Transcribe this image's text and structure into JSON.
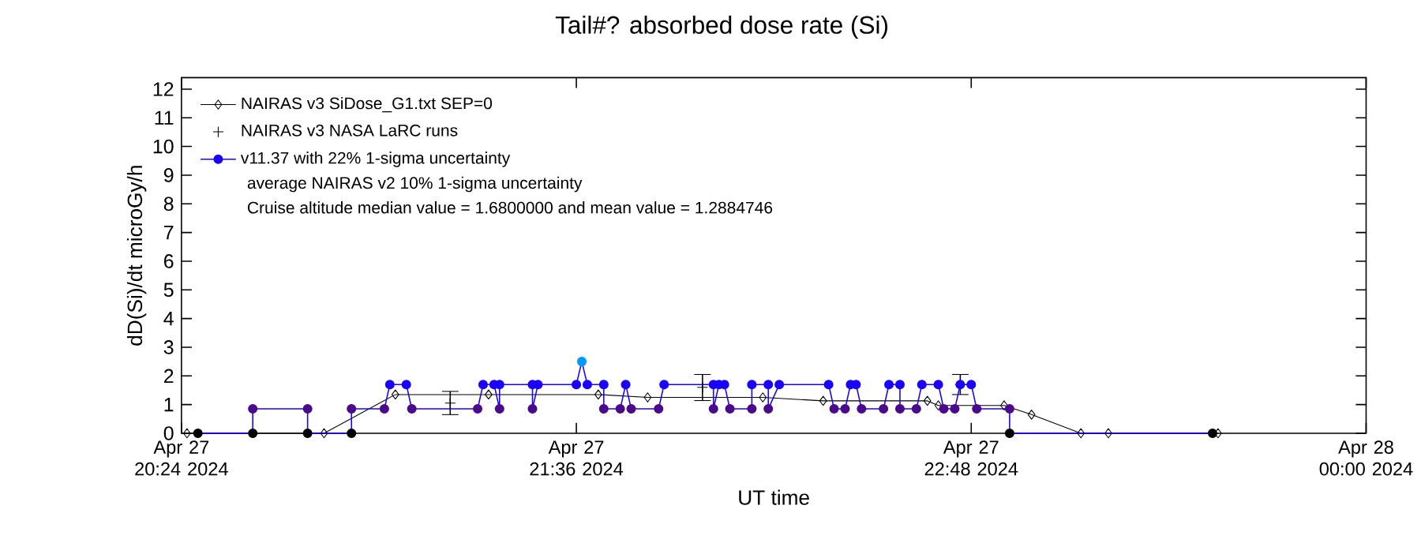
{
  "chart_data": {
    "type": "line",
    "title": "Tail#? absorbed dose rate (Si)",
    "xlabel": "UT time",
    "ylabel": "dD(Si)/dt microGy/h",
    "xlim": [
      "2024-04-27T20:24",
      "2024-04-28T00:00"
    ],
    "xticks": [
      {
        "value": "2024-04-27T20:24",
        "label": "Apr 27 20:24 2024"
      },
      {
        "value": "2024-04-27T21:36",
        "label": "Apr 27 21:36 2024"
      },
      {
        "value": "2024-04-27T22:48",
        "label": "Apr 27 22:48 2024"
      },
      {
        "value": "2024-04-28T00:00",
        "label": "Apr 28 00:00 2024"
      }
    ],
    "ylim": [
      0,
      12.4
    ],
    "yticks": [
      0,
      1,
      2,
      3,
      4,
      5,
      6,
      7,
      8,
      9,
      10,
      11,
      12
    ],
    "legend": "top left",
    "annotations": [
      "average NAIRAS v2 10% 1-sigma uncertainty",
      "Cruise altitude median value = 1.6800000 and mean value = 1.2884746"
    ],
    "series": [
      {
        "name": "NAIRAS v3 SiDose_G1.txt SEP=0",
        "marker": "diamond",
        "color": "#000000",
        "x": [
          "2024-04-27T20:25",
          "2024-04-27T20:50",
          "2024-04-27T21:03",
          "2024-04-27T21:20",
          "2024-04-27T21:40",
          "2024-04-27T21:49",
          "2024-04-27T22:10",
          "2024-04-27T22:21",
          "2024-04-27T22:40",
          "2024-04-27T22:42",
          "2024-04-27T22:54",
          "2024-04-27T22:59",
          "2024-04-27T23:08",
          "2024-04-27T23:13",
          "2024-04-27T23:33"
        ],
        "values": [
          0,
          0,
          1.35,
          1.35,
          1.35,
          1.25,
          1.25,
          1.13,
          1.13,
          0.97,
          0.97,
          0.65,
          0,
          0,
          0
        ]
      },
      {
        "name": "NAIRAS v3 NASA LaRC runs",
        "type": "scatter",
        "marker": "cross",
        "color": "#000000",
        "x": [
          "2024-04-27T21:13",
          "2024-04-27T21:59",
          "2024-04-27T22:46"
        ],
        "values": [
          1.05,
          1.6,
          1.7
        ],
        "errors": [
          [
            0.65,
            1.46
          ],
          [
            1.14,
            2.05
          ],
          [
            1.35,
            2.05
          ]
        ]
      },
      {
        "name": "v11.37 with 22% 1-sigma uncertainty",
        "marker": "circle",
        "color": "#1a00ff",
        "x": [
          "2024-04-27T20:27",
          "2024-04-27T20:37",
          "2024-04-27T20:37",
          "2024-04-27T20:47",
          "2024-04-27T20:47",
          "2024-04-27T20:55",
          "2024-04-27T20:55",
          "2024-04-27T21:01",
          "2024-04-27T21:02",
          "2024-04-27T21:05",
          "2024-04-27T21:06",
          "2024-04-27T21:18",
          "2024-04-27T21:19",
          "2024-04-27T21:21",
          "2024-04-27T21:22",
          "2024-04-27T21:22",
          "2024-04-27T21:28",
          "2024-04-27T21:28",
          "2024-04-27T21:29",
          "2024-04-27T21:36",
          "2024-04-27T21:37",
          "2024-04-27T21:38",
          "2024-04-27T21:41",
          "2024-04-27T21:41",
          "2024-04-27T21:44",
          "2024-04-27T21:45",
          "2024-04-27T21:46",
          "2024-04-27T21:51",
          "2024-04-27T21:52",
          "2024-04-27T22:01",
          "2024-04-27T22:01",
          "2024-04-27T22:02",
          "2024-04-27T22:03",
          "2024-04-27T22:04",
          "2024-04-27T22:08",
          "2024-04-27T22:08",
          "2024-04-27T22:11",
          "2024-04-27T22:11",
          "2024-04-27T22:13",
          "2024-04-27T22:22",
          "2024-04-27T22:23",
          "2024-04-27T22:25",
          "2024-04-27T22:26",
          "2024-04-27T22:27",
          "2024-04-27T22:28",
          "2024-04-27T22:32",
          "2024-04-27T22:33",
          "2024-04-27T22:35",
          "2024-04-27T22:35",
          "2024-04-27T22:38",
          "2024-04-27T22:39",
          "2024-04-27T22:42",
          "2024-04-27T22:43",
          "2024-04-27T22:45",
          "2024-04-27T22:46",
          "2024-04-27T22:48",
          "2024-04-27T22:49",
          "2024-04-27T22:55",
          "2024-04-27T22:55",
          "2024-04-27T23:32"
        ],
        "values": [
          0,
          0,
          0.85,
          0.85,
          0,
          0,
          0.85,
          0.85,
          1.7,
          1.7,
          0.85,
          0.85,
          1.7,
          1.7,
          0.85,
          1.7,
          1.7,
          0.85,
          1.7,
          1.7,
          2.5,
          1.7,
          1.7,
          0.85,
          0.85,
          1.7,
          0.85,
          0.85,
          1.7,
          1.7,
          0.85,
          1.7,
          1.7,
          0.85,
          0.85,
          1.7,
          1.7,
          0.85,
          1.7,
          1.7,
          0.85,
          0.85,
          1.7,
          1.7,
          0.85,
          0.85,
          1.7,
          1.7,
          0.85,
          0.85,
          1.7,
          1.7,
          0.85,
          0.85,
          1.7,
          1.7,
          0.85,
          0.85,
          0,
          0
        ],
        "colors": [
          "#000000",
          "#000000",
          "#4b0a8c",
          "#4b0a8c",
          "#000000",
          "#000000",
          "#4b0a8c",
          "#4b0a8c",
          "#1a00ff",
          "#1a00ff",
          "#4b0a8c",
          "#4b0a8c",
          "#1a00ff",
          "#1a00ff",
          "#4b0a8c",
          "#1a00ff",
          "#1a00ff",
          "#4b0a8c",
          "#1a00ff",
          "#1a00ff",
          "#0099ff",
          "#1a00ff",
          "#1a00ff",
          "#4b0a8c",
          "#4b0a8c",
          "#1a00ff",
          "#4b0a8c",
          "#4b0a8c",
          "#1a00ff",
          "#1a00ff",
          "#4b0a8c",
          "#1a00ff",
          "#1a00ff",
          "#4b0a8c",
          "#4b0a8c",
          "#1a00ff",
          "#1a00ff",
          "#4b0a8c",
          "#1a00ff",
          "#1a00ff",
          "#4b0a8c",
          "#4b0a8c",
          "#1a00ff",
          "#1a00ff",
          "#4b0a8c",
          "#4b0a8c",
          "#1a00ff",
          "#1a00ff",
          "#4b0a8c",
          "#4b0a8c",
          "#1a00ff",
          "#1a00ff",
          "#4b0a8c",
          "#4b0a8c",
          "#1a00ff",
          "#1a00ff",
          "#4b0a8c",
          "#4b0a8c",
          "#000000",
          "#000000"
        ]
      }
    ]
  }
}
